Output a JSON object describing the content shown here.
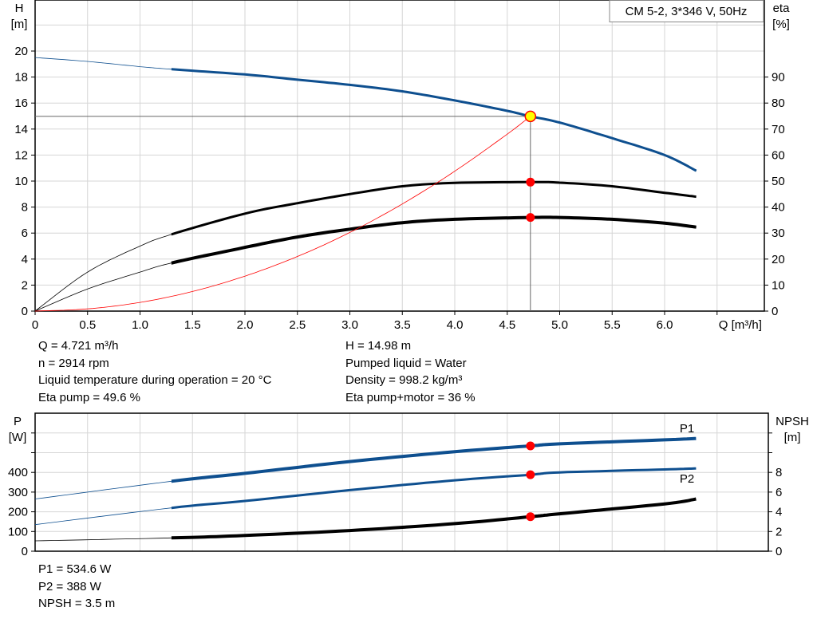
{
  "chart_data": [
    {
      "type": "line",
      "legend_box": "CM 5-2, 3*346 V, 50Hz",
      "xlabel": "Q [m³/h]",
      "ylabel_left": [
        "H",
        "[m]"
      ],
      "ylabel_right": [
        "eta",
        "[%]"
      ],
      "xlim": [
        0,
        6.95
      ],
      "ylim_left": [
        0,
        23.9
      ],
      "ylim_right": [
        0,
        119.5
      ],
      "x_ticks": [
        "0",
        "0.5",
        "1.0",
        "1.5",
        "2.0",
        "2.5",
        "3.0",
        "3.5",
        "4.0",
        "4.5",
        "5.0",
        "5.5",
        "6.0"
      ],
      "y_ticks_left": [
        "0",
        "2",
        "4",
        "6",
        "8",
        "10",
        "12",
        "14",
        "16",
        "18",
        "20"
      ],
      "y_ticks_right": [
        "0",
        "10",
        "20",
        "30",
        "40",
        "50",
        "60",
        "70",
        "80",
        "90"
      ],
      "grid": true,
      "duty_point": {
        "Q": 4.721,
        "H": 14.98,
        "eta_pump": 49.6,
        "eta_pump_motor": 36
      },
      "series": [
        {
          "axis": "left",
          "color": "#0e4f8f",
          "x": [
            0,
            0.5,
            1.0,
            1.3,
            2,
            2.5,
            3,
            3.5,
            4,
            4.5,
            4.72,
            5,
            5.5,
            6,
            6.3
          ],
          "y": [
            19.5,
            19.2,
            18.8,
            18.6,
            18.2,
            17.8,
            17.4,
            16.9,
            16.2,
            15.4,
            14.98,
            14.5,
            13.3,
            12.0,
            10.8
          ],
          "thin_until": 1.3
        },
        {
          "axis": "right",
          "color": "#000000",
          "x": [
            0,
            0.5,
            1.0,
            1.3,
            2,
            2.5,
            3,
            3.5,
            4,
            4.72,
            5,
            5.5,
            6,
            6.3
          ],
          "y": [
            0,
            15,
            25,
            29.5,
            37.5,
            41.5,
            45,
            48,
            49.3,
            49.6,
            49.4,
            48,
            45.5,
            44
          ],
          "thin_until": 1.3
        },
        {
          "axis": "right",
          "color": "#000000",
          "x": [
            0,
            0.5,
            1.0,
            1.3,
            2,
            2.5,
            3,
            3.5,
            4,
            4.72,
            5,
            5.5,
            6,
            6.3
          ],
          "y": [
            0,
            8.5,
            15,
            18.5,
            24.5,
            28.5,
            31.5,
            34,
            35.3,
            36,
            36,
            35.3,
            33.8,
            32.3
          ],
          "thin_until": 1.3,
          "thick": true
        },
        {
          "axis": "left",
          "color": "#ff0000",
          "system_curve": true,
          "x": [
            0,
            0.5,
            1.0,
            1.5,
            2,
            2.5,
            3,
            3.5,
            4,
            4.5,
            4.72
          ],
          "y": [
            0,
            0.17,
            0.67,
            1.51,
            2.69,
            4.2,
            6.05,
            8.24,
            10.76,
            13.61,
            14.98
          ]
        }
      ]
    },
    {
      "type": "line",
      "ylabel_left": [
        "P",
        "[W]"
      ],
      "ylabel_right": [
        "NPSH",
        "[m]"
      ],
      "xlim": [
        0,
        6.95
      ],
      "ylim_left": [
        0,
        700
      ],
      "y_ticks_left": [
        "0",
        "100",
        "200",
        "300",
        "400"
      ],
      "y_ticks_right": [
        "0",
        "2",
        "4",
        "6",
        "8"
      ],
      "grid": true,
      "series": [
        {
          "name": "P1",
          "axis": "left",
          "color": "#0e4f8f",
          "x": [
            0,
            1.3,
            2,
            3,
            4,
            4.72,
            5,
            6,
            6.3
          ],
          "y": [
            265,
            355,
            395,
            455,
            505,
            534.6,
            545,
            565,
            572
          ],
          "thin_until": 1.3,
          "thick": true
        },
        {
          "name": "P2",
          "axis": "left",
          "color": "#0e4f8f",
          "x": [
            0,
            1.3,
            2,
            3,
            4,
            4.72,
            5,
            6,
            6.3
          ],
          "y": [
            135,
            220,
            255,
            310,
            360,
            388,
            400,
            415,
            420
          ],
          "thin_until": 1.3
        },
        {
          "axis": "right",
          "color": "#000000",
          "x": [
            0,
            1.3,
            2,
            3,
            4,
            4.72,
            5,
            6,
            6.3
          ],
          "y": [
            1.05,
            1.35,
            1.6,
            2.1,
            2.8,
            3.5,
            3.8,
            4.8,
            5.3
          ],
          "thin_until": 1.3,
          "thick": true
        }
      ],
      "duty_point": {
        "Q": 4.721,
        "P1": 534.6,
        "P2": 388,
        "NPSH": 3.5
      }
    }
  ],
  "info_left": [
    "Q = 4.721 m³/h",
    "n = 2914 rpm",
    "Liquid temperature during operation = 20 °C",
    "Eta pump = 49.6 %"
  ],
  "info_right": [
    "H = 14.98 m",
    "Pumped liquid = Water",
    "Density = 998.2 kg/m³",
    "Eta pump+motor = 36 %"
  ],
  "info_bottom": [
    "P1 = 534.6 W",
    "P2 = 388 W",
    "NPSH = 3.5 m"
  ]
}
